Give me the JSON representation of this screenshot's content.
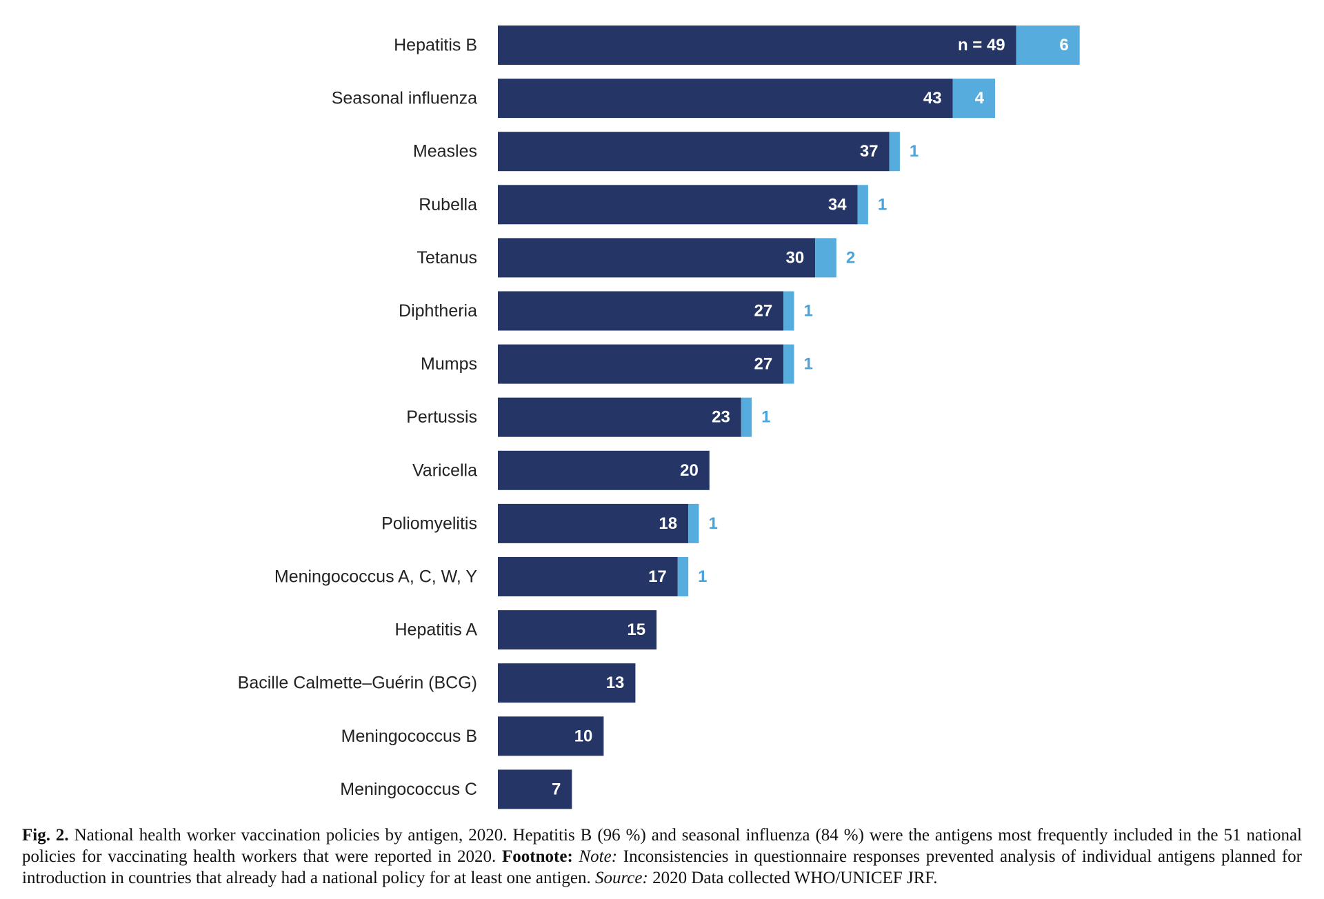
{
  "chart_data": {
    "type": "bar",
    "orientation": "horizontal",
    "stacked": true,
    "categories": [
      "Hepatitis B",
      "Seasonal influenza",
      "Measles",
      "Rubella",
      "Tetanus",
      "Diphtheria",
      "Mumps",
      "Pertussis",
      "Varicella",
      "Poliomyelitis",
      "Meningococcus A, C, W, Y",
      "Hepatitis A",
      "Bacille Calmette–Guérin (BCG)",
      "Meningococcus B",
      "Meningococcus C"
    ],
    "series": [
      {
        "values": [
          49,
          43,
          37,
          34,
          30,
          27,
          27,
          23,
          20,
          18,
          17,
          15,
          13,
          10,
          7
        ],
        "color": "#253566"
      },
      {
        "values": [
          6,
          4,
          1,
          1,
          2,
          1,
          1,
          1,
          0,
          1,
          1,
          0,
          0,
          0,
          0
        ],
        "color": "#55acdd"
      }
    ],
    "first_label_prefix": "n = ",
    "xlim": [
      0,
      55
    ],
    "grid": false,
    "legend": "none"
  },
  "caption": {
    "fig_label": "Fig. 2.",
    "text": " National health worker vaccination policies by antigen, 2020. Hepatitis B (96 %) and seasonal influenza (84 %) were the antigens most frequently included in the 51 national policies for vaccinating health workers that were reported in 2020. ",
    "footnote_label": "Footnote:",
    "note_label": " Note:",
    "note_text": " Inconsistencies in questionnaire responses prevented analysis of individual antigens planned for introduction in countries that already had a national policy for at least one antigen. ",
    "source_label": "Source:",
    "source_text": " 2020 Data collected WHO/UNICEF JRF."
  }
}
